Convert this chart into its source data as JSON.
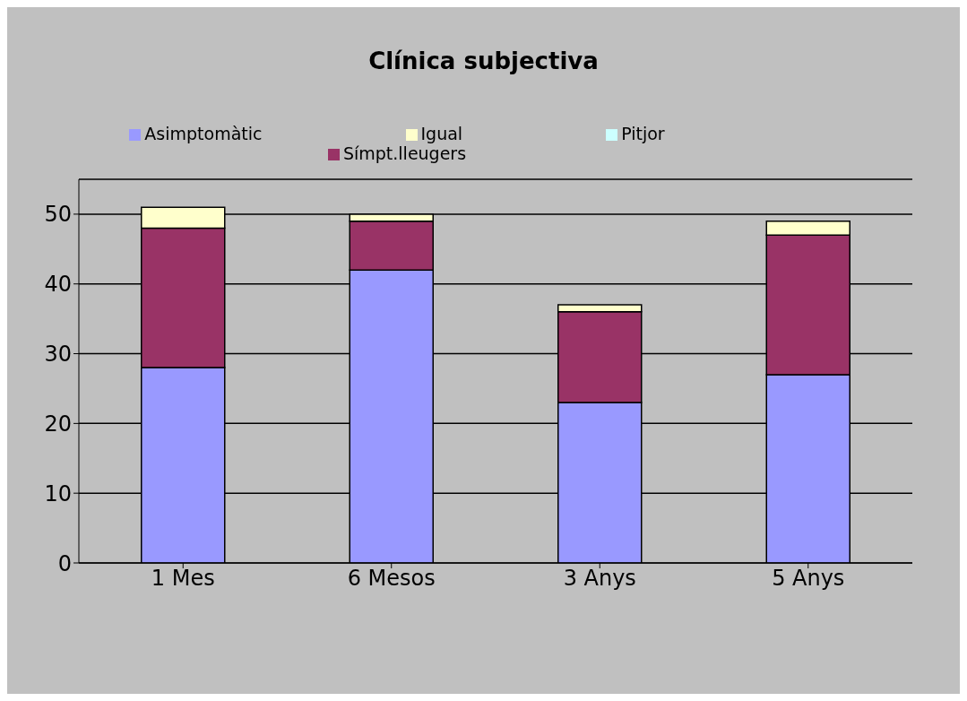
{
  "chart_data": {
    "type": "bar",
    "title": "Clínica subjectiva",
    "stacked": true,
    "legend": "top",
    "grid": "y",
    "categories": [
      "1 Mes",
      "6 Mesos",
      "3 Anys",
      "5 Anys"
    ],
    "series": [
      {
        "name": "Asimptomàtic",
        "color": "#9999ff",
        "values": [
          28,
          42,
          23,
          27
        ]
      },
      {
        "name": "Símpt.lleugers",
        "color": "#993366",
        "values": [
          20,
          7,
          13,
          20
        ]
      },
      {
        "name": "Igual",
        "color": "#ffffcc",
        "values": [
          3,
          1,
          1,
          2
        ]
      },
      {
        "name": "Pitjor",
        "color": "#ccffff",
        "values": [
          0,
          0,
          0,
          0
        ]
      }
    ],
    "ylim": [
      0,
      55
    ],
    "yticks": [
      0,
      10,
      20,
      30,
      40,
      50
    ]
  }
}
